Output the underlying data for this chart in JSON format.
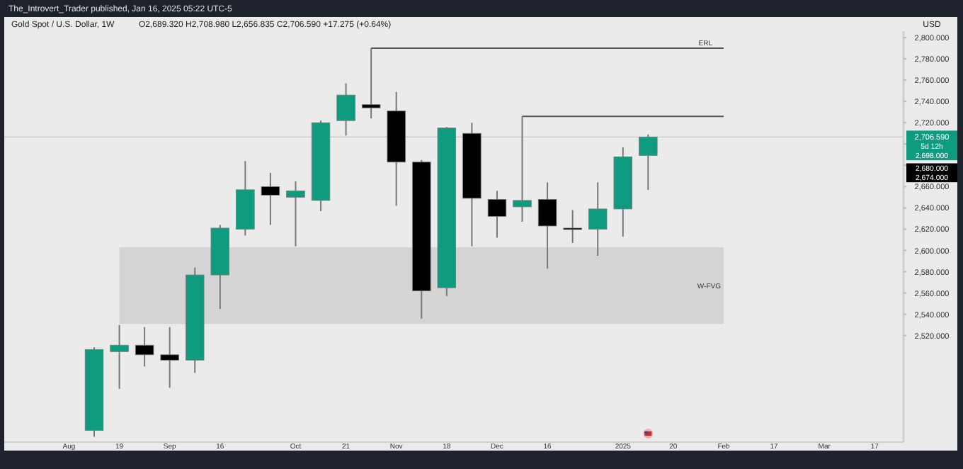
{
  "chart_data": {
    "type": "candlestick",
    "title": "Gold Spot / U.S. Dollar, 1W",
    "subtitle": "O2,689.320 H2,708.980 L2,656.835 C2,706.590 +17.275 (+0.64%)",
    "annotations": [
      "The_Introvert_Trader published, Jan 16, 2025 05:22 UTC-5",
      "USD",
      "5d 12h",
      "2,698.000",
      "2,680.000",
      "2,674.000"
    ],
    "x": [
      "2024-08-12",
      "2024-08-19",
      "2024-08-26",
      "2024-09-02",
      "2024-09-09",
      "2024-09-16",
      "2024-09-23",
      "2024-09-30",
      "2024-10-07",
      "2024-10-14",
      "2024-10-21",
      "2024-10-28",
      "2024-11-04",
      "2024-11-11",
      "2024-11-18",
      "2024-11-25",
      "2024-12-02",
      "2024-12-09",
      "2024-12-16",
      "2024-12-23",
      "2024-12-30",
      "2025-01-06",
      "2025-01-13"
    ],
    "ohlc": [
      [
        2431,
        2509,
        2425,
        2507
      ],
      [
        2505,
        2530,
        2470,
        2511
      ],
      [
        2511,
        2528,
        2491,
        2502
      ],
      [
        2502,
        2528,
        2471,
        2497
      ],
      [
        2497,
        2584,
        2485,
        2577
      ],
      [
        2577,
        2624,
        2545,
        2621
      ],
      [
        2620,
        2684,
        2614,
        2657
      ],
      [
        2660,
        2673,
        2624,
        2652
      ],
      [
        2650,
        2665,
        2604,
        2656
      ],
      [
        2647,
        2722,
        2637,
        2720
      ],
      [
        2722,
        2757,
        2708,
        2746
      ],
      [
        2737,
        2790,
        2724,
        2734
      ],
      [
        2731,
        2749,
        2642,
        2683
      ],
      [
        2683,
        2685,
        2536,
        2562
      ],
      [
        2565,
        2716,
        2557,
        2715
      ],
      [
        2710,
        2720,
        2604,
        2649
      ],
      [
        2648,
        2656,
        2612,
        2632
      ],
      [
        2641,
        2726,
        2627,
        2647
      ],
      [
        2648,
        2664,
        2583,
        2623
      ],
      [
        2621,
        2638,
        2607,
        2621
      ],
      [
        2620,
        2664,
        2595,
        2639
      ],
      [
        2639,
        2697,
        2613,
        2688
      ],
      [
        2689.32,
        2708.98,
        2656.835,
        2706.59
      ]
    ],
    "colors": [
      "#0f9b7f",
      "#0f9b7f",
      "#000000",
      "#000000",
      "#0f9b7f",
      "#0f9b7f",
      "#0f9b7f",
      "#000000",
      "#0f9b7f",
      "#0f9b7f",
      "#0f9b7f",
      "#000000",
      "#000000",
      "#000000",
      "#0f9b7f",
      "#000000",
      "#000000",
      "#0f9b7f",
      "#000000",
      "#000000",
      "#0f9b7f",
      "#0f9b7f",
      "#0f9b7f"
    ],
    "xlim": [
      "2024-07-18",
      "2025-03-25"
    ],
    "xticks": [
      {
        "value": "2024-08-05",
        "label": "Aug"
      },
      {
        "value": "2024-08-19",
        "label": "19"
      },
      {
        "value": "2024-09-02",
        "label": "Sep"
      },
      {
        "value": "2024-09-16",
        "label": "16"
      },
      {
        "value": "2024-10-07",
        "label": "Oct"
      },
      {
        "value": "2024-10-21",
        "label": "21"
      },
      {
        "value": "2024-11-04",
        "label": "Nov"
      },
      {
        "value": "2024-11-18",
        "label": "18"
      },
      {
        "value": "2024-12-02",
        "label": "Dec"
      },
      {
        "value": "2024-12-16",
        "label": "16"
      },
      {
        "value": "2025-01-06",
        "label": "2025"
      },
      {
        "value": "2025-01-20",
        "label": "20"
      },
      {
        "value": "2025-02-03",
        "label": "Feb"
      },
      {
        "value": "2025-02-17",
        "label": "17"
      },
      {
        "value": "2025-03-03",
        "label": "Mar"
      },
      {
        "value": "2025-03-17",
        "label": "17"
      }
    ],
    "ylim": [
      2420,
      2806
    ],
    "yticks": [
      {
        "value": 2520,
        "label": "2,520.000"
      },
      {
        "value": 2540,
        "label": "2,540.000"
      },
      {
        "value": 2560,
        "label": "2,560.000"
      },
      {
        "value": 2580,
        "label": "2,580.000"
      },
      {
        "value": 2600,
        "label": "2,600.000"
      },
      {
        "value": 2620,
        "label": "2,620.000"
      },
      {
        "value": 2640,
        "label": "2,640.000"
      },
      {
        "value": 2660,
        "label": "2,660.000"
      },
      {
        "value": 2680,
        "label": null
      },
      {
        "value": 2700,
        "label": null
      },
      {
        "value": 2720,
        "label": "2,720.000"
      },
      {
        "value": 2740,
        "label": "2,740.000"
      },
      {
        "value": 2760,
        "label": "2,760.000"
      },
      {
        "value": 2780,
        "label": "2,780.000"
      },
      {
        "value": 2800,
        "label": "2,800.000"
      }
    ],
    "grid": false,
    "ref_lines": [
      {
        "axis": "y",
        "value": 2790,
        "label": "ERL",
        "color": "#555555"
      },
      {
        "axis": "y",
        "value": 2726,
        "color": "#555555"
      },
      {
        "axis": "y",
        "value": 2706.59,
        "label": "2,706.590",
        "color": "#c8c8c8"
      }
    ],
    "bands": [
      {
        "axis": "y",
        "from": 2531,
        "to": 2603,
        "label": "W-FVG",
        "color": "#d4d4d4"
      }
    ]
  }
}
